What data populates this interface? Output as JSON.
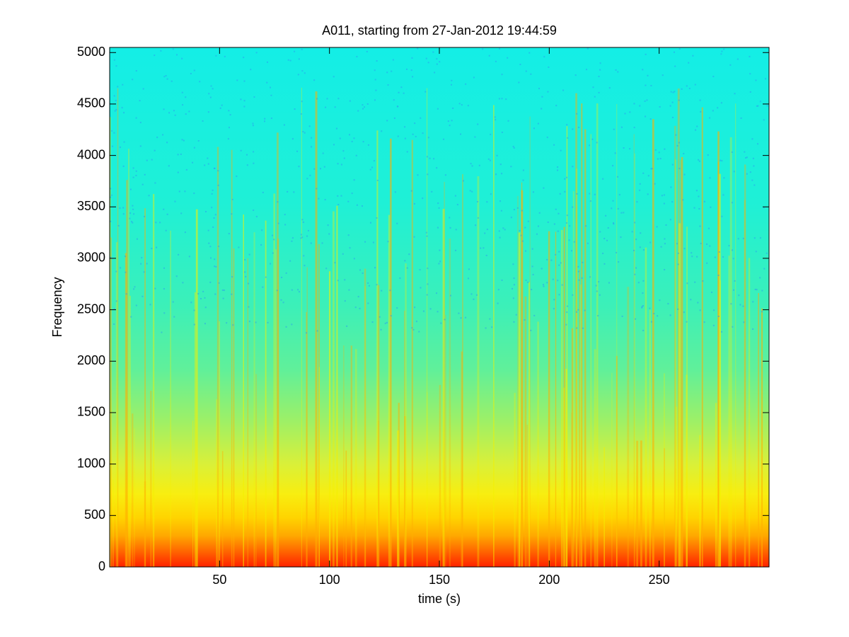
{
  "chart_data": {
    "type": "spectrogram",
    "title": "A011, starting from 27-Jan-2012 19:44:59",
    "xlabel": "time (s)",
    "ylabel": "Frequency",
    "xlim": [
      0,
      300
    ],
    "xticks": [
      50,
      100,
      150,
      200,
      250
    ],
    "ylim": [
      0,
      5050
    ],
    "yticks": [
      0,
      500,
      1000,
      1500,
      2000,
      2500,
      3000,
      3500,
      4000,
      4500,
      5000
    ],
    "colormap": "jet"
  }
}
